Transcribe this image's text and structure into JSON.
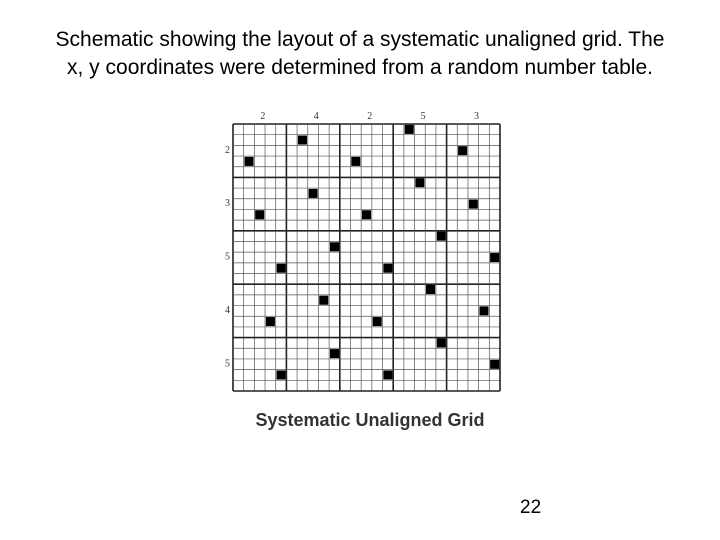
{
  "title": "Schematic showing the layout of a systematic unaligned grid. The x, y coordinates were determined from a random number table.",
  "grid": {
    "column_labels": [
      "2",
      "4",
      "2",
      "5",
      "3"
    ],
    "row_labels": [
      "2",
      "3",
      "5",
      "4",
      "5"
    ],
    "caption": "Systematic Unaligned Grid"
  },
  "page_number": "22"
}
